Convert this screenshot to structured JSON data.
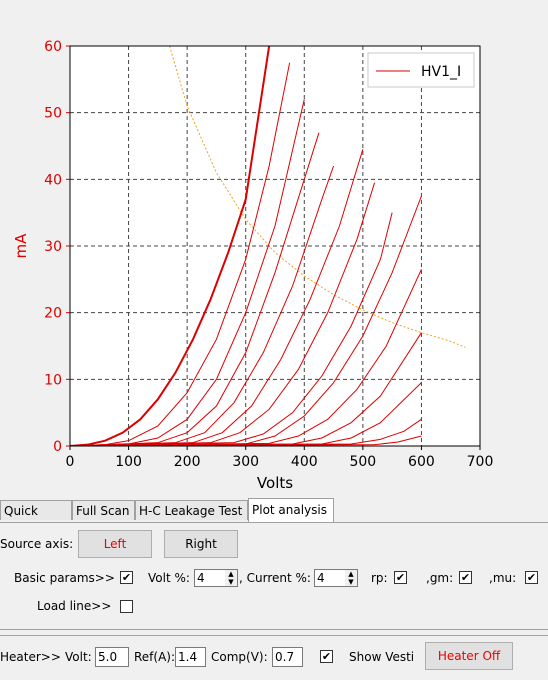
{
  "chart_data": {
    "type": "line",
    "xlabel": "Volts",
    "ylabel": "mA",
    "xlim": [
      0,
      700
    ],
    "ylim": [
      0,
      60
    ],
    "xticks": [
      "0",
      "100",
      "200",
      "300",
      "400",
      "500",
      "600",
      "700"
    ],
    "yticks": [
      "0",
      "10",
      "20",
      "30",
      "40",
      "50",
      "60"
    ],
    "grid": true,
    "legend": {
      "position": "top-right",
      "entries": [
        "HV1_I"
      ]
    },
    "line_color": "#dd0000",
    "load_line_color": "#f0a020",
    "series": [
      {
        "name": "HV1_I",
        "x": [
          0,
          30,
          60,
          90,
          120,
          150,
          180,
          210,
          240,
          270,
          300,
          340
        ],
        "y": [
          0,
          0.2,
          0.8,
          2.0,
          4.0,
          7.0,
          11.0,
          16.0,
          22.0,
          29.0,
          37.0,
          60.0
        ]
      },
      {
        "x": [
          0,
          60,
          100,
          150,
          200,
          250,
          300,
          340,
          375
        ],
        "y": [
          0,
          0.2,
          0.8,
          3.0,
          8.0,
          16.0,
          28.0,
          42.0,
          57.5
        ]
      },
      {
        "x": [
          0,
          100,
          150,
          200,
          250,
          300,
          350,
          400
        ],
        "y": [
          0,
          0.3,
          1.2,
          4.0,
          10.0,
          20.0,
          33.0,
          52.0
        ]
      },
      {
        "x": [
          0,
          150,
          200,
          250,
          300,
          350,
          400,
          425
        ],
        "y": [
          0,
          0.5,
          2.0,
          6.0,
          14.0,
          26.0,
          40.0,
          47.0
        ]
      },
      {
        "x": [
          0,
          180,
          230,
          280,
          330,
          380,
          430,
          450
        ],
        "y": [
          0,
          0.5,
          2.0,
          6.5,
          14.0,
          24.0,
          37.0,
          42.0
        ]
      },
      {
        "x": [
          0,
          210,
          260,
          310,
          360,
          410,
          460,
          500
        ],
        "y": [
          0,
          0.5,
          2.0,
          6.0,
          13.0,
          22.0,
          33.0,
          44.5
        ]
      },
      {
        "x": [
          0,
          240,
          290,
          340,
          390,
          440,
          490,
          520
        ],
        "y": [
          0,
          0.5,
          2.0,
          5.5,
          11.5,
          20.0,
          31.0,
          39.5
        ]
      },
      {
        "x": [
          0,
          280,
          330,
          380,
          430,
          480,
          530,
          550
        ],
        "y": [
          0,
          0.5,
          1.8,
          5.0,
          10.5,
          18.0,
          28.0,
          35.0
        ]
      },
      {
        "x": [
          0,
          300,
          350,
          400,
          450,
          500,
          550,
          600
        ],
        "y": [
          0,
          0.3,
          1.5,
          4.5,
          9.5,
          16.5,
          26.0,
          37.5
        ]
      },
      {
        "x": [
          0,
          340,
          390,
          440,
          490,
          540,
          600
        ],
        "y": [
          0,
          0.4,
          1.5,
          4.0,
          8.5,
          15.0,
          26.5
        ]
      },
      {
        "x": [
          0,
          380,
          430,
          480,
          530,
          600
        ],
        "y": [
          0,
          0.3,
          1.2,
          3.5,
          7.5,
          17.0
        ]
      },
      {
        "x": [
          0,
          430,
          480,
          530,
          600
        ],
        "y": [
          0,
          0.3,
          1.2,
          3.5,
          9.5
        ]
      },
      {
        "x": [
          0,
          480,
          530,
          570,
          600
        ],
        "y": [
          0,
          0.3,
          1.0,
          2.2,
          4.0
        ]
      },
      {
        "x": [
          0,
          520,
          560,
          600
        ],
        "y": [
          0,
          0.2,
          0.6,
          1.5
        ]
      }
    ],
    "load_line": {
      "x": [
        170,
        200,
        250,
        300,
        350,
        400,
        450,
        500,
        550,
        600,
        650,
        675
      ],
      "y": [
        60,
        51,
        41,
        34,
        29,
        25.5,
        22.7,
        20.4,
        18.5,
        17.0,
        15.7,
        14.8
      ]
    }
  },
  "tabs": [
    "Quick Scan",
    "Full Scan",
    "H-C Leakage Test",
    "Plot analysis"
  ],
  "active_tab": "Plot analysis",
  "source_axis": {
    "label": "Source axis:",
    "left": "Left",
    "right": "Right"
  },
  "basic": {
    "label": "Basic params>>",
    "volt_label": "Volt %:",
    "volt_value": "4",
    "current_label": ", Current %:",
    "current_value": "4",
    "rp_label": "rp:",
    "gm_label": ",gm:",
    "mu_label": ",mu:"
  },
  "load_line_row": {
    "label": "Load line>>"
  },
  "heater": {
    "label": "Heater>>",
    "volt_label": "Volt:",
    "volt_value": "5.0",
    "ref_label": "Ref(A):",
    "ref_value": "1.4",
    "comp_label": "Comp(V):",
    "comp_value": "0.7",
    "show_vesti": "Show Vesti",
    "heater_off": "Heater Off"
  },
  "check_glyph": "✔"
}
